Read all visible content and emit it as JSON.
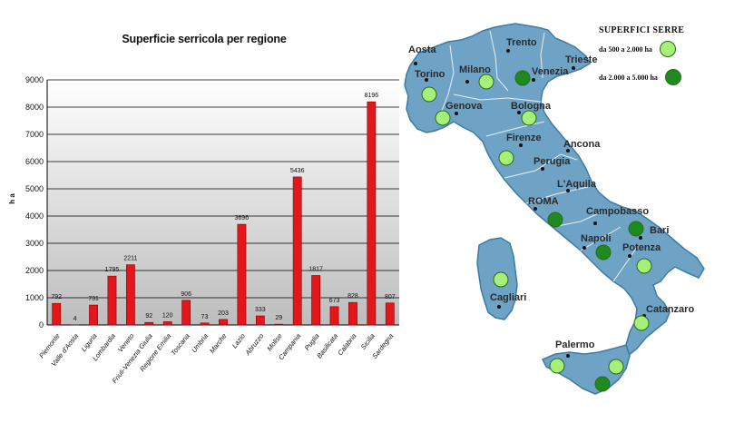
{
  "chart_data": [
    {
      "type": "bar",
      "title": "Superficie serricola per regione",
      "ylabel": "h a",
      "xlabel": "",
      "ylim": [
        0,
        9000
      ],
      "yticks": [
        0,
        1000,
        2000,
        3000,
        4000,
        5000,
        6000,
        7000,
        8000,
        9000
      ],
      "grid": true,
      "bar_color": "#e3161b",
      "categories": [
        "Piemonte",
        "Valle d'Aosta",
        "Liguria",
        "Lombardia",
        "Veneto",
        "Friuli-Venezia Giulia",
        "Regione Emilia",
        "Toscana",
        "Umbria",
        "Marche",
        "Lazio",
        "Abruzzo",
        "Molise",
        "Campania",
        "Puglia",
        "Basilicata",
        "Calabria",
        "Sicilia",
        "Sardegna"
      ],
      "values": [
        792,
        4,
        731,
        1795,
        2211,
        92,
        120,
        906,
        73,
        203,
        3696,
        333,
        29,
        5436,
        1817,
        673,
        828,
        8196,
        807
      ]
    }
  ],
  "map": {
    "legend": {
      "title": "SUPERFICI SERRE",
      "items": [
        {
          "label": "da 500 a 2.000 ha",
          "color": "#a6f07a"
        },
        {
          "label": "da 2.000 a 5.000 ha",
          "color": "#1f8a1f"
        }
      ]
    },
    "cities": [
      "Aosta",
      "Torino",
      "Milano",
      "Trento",
      "Venezia",
      "Trieste",
      "Genova",
      "Bologna",
      "Firenze",
      "Ancona",
      "Perugia",
      "L'Aquila",
      "ROMA",
      "Campobasso",
      "Bari",
      "Napoli",
      "Potenza",
      "Cagliari",
      "Catanzaro",
      "Palermo"
    ],
    "colors": {
      "land": "#6fa3c6",
      "land_border": "#3e7ba3",
      "region_border": "#e6f0f7",
      "light_marker": "#a6f07a",
      "dark_marker": "#1f8a1f"
    }
  }
}
